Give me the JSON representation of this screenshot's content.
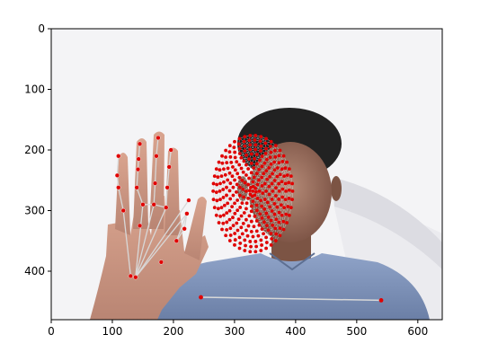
{
  "chart_data": {
    "type": "image",
    "xlim": [
      0,
      640
    ],
    "ylim": [
      480,
      0
    ],
    "xticks": [
      0,
      100,
      200,
      300,
      400,
      500,
      600
    ],
    "yticks": [
      0,
      100,
      200,
      300,
      400
    ],
    "xtick_labels": [
      "0",
      "100",
      "200",
      "300",
      "400",
      "500",
      "600"
    ],
    "ytick_labels": [
      "0",
      "100",
      "200",
      "300",
      "400"
    ],
    "grid": false,
    "landmark_color": "#e00000",
    "connector_color": "#d8d8d8",
    "series": [
      {
        "points": [
          [
            138,
            410
          ],
          [
            130,
            408
          ],
          [
            118,
            300
          ],
          [
            110,
            262
          ],
          [
            108,
            242
          ],
          [
            110,
            210
          ],
          [
            150,
            290
          ],
          [
            140,
            262
          ],
          [
            143,
            215
          ],
          [
            145,
            190
          ],
          [
            168,
            290
          ],
          [
            170,
            255
          ],
          [
            172,
            210
          ],
          [
            175,
            180
          ],
          [
            188,
            295
          ],
          [
            190,
            262
          ],
          [
            193,
            228
          ],
          [
            196,
            200
          ],
          [
            205,
            350
          ],
          [
            218,
            330
          ],
          [
            222,
            305
          ],
          [
            225,
            283
          ],
          [
            180,
            385
          ],
          [
            145,
            325
          ],
          [
            142,
            232
          ]
        ]
      },
      {
        "points": [
          [
            245,
            443
          ],
          [
            540,
            448
          ]
        ]
      },
      {
        "center": [
          330,
          268
        ],
        "radius_x": 65,
        "radius_y": 100
      }
    ]
  }
}
